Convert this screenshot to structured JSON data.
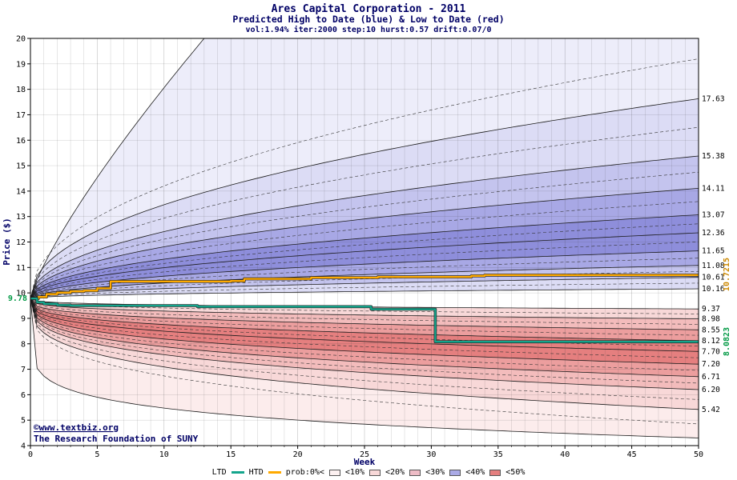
{
  "title": {
    "main": "Ares Capital Corporation - 2011",
    "subtitle": "Predicted High to Date (blue) &  Low to Date (red)",
    "params": "vol:1.94% iter:2000 step:10 hurst:0.57 drift:0.07/0"
  },
  "axes": {
    "x_label": "Week",
    "y_label": "Price ($)",
    "x_ticks": [
      0,
      5,
      10,
      15,
      20,
      25,
      30,
      35,
      40,
      45,
      50
    ],
    "y_ticks": [
      4,
      5,
      6,
      7,
      8,
      9,
      10,
      11,
      12,
      13,
      14,
      15,
      16,
      17,
      18,
      19,
      20
    ]
  },
  "annotations": {
    "start_label": "9.78",
    "htd_final_label": "10.7215",
    "ltd_final_label": "8.0823"
  },
  "copyright": {
    "line1": "©www.textbiz.org",
    "line2": "The Research Foundation of SUNY"
  },
  "colors": {
    "navy": "#000066",
    "green": "#009944",
    "orange_label": "#cc8800"
  },
  "legend": {
    "ltd": "LTD",
    "htd": "HTD",
    "prob": "prob:0%<",
    "items": [
      {
        "label": "<10%",
        "color": "#fdf1f1"
      },
      {
        "label": "<20%",
        "color": "#f8d8d8"
      },
      {
        "label": "<30%",
        "color": "#eebcc6"
      },
      {
        "label": "<40%",
        "color": "#aaaae6"
      },
      {
        "label": "<50%",
        "color": "#e57f7f"
      }
    ]
  },
  "chart_data": {
    "type": "area",
    "subtype": "probability-fan",
    "title": "Ares Capital Corporation - 2011",
    "xlabel": "Week",
    "ylabel": "Price ($)",
    "x_range": [
      0,
      50
    ],
    "y_range": [
      4,
      20
    ],
    "grid": true,
    "start": {
      "x": 0,
      "y": 9.78
    },
    "upper_band_endpoints": [
      10.16,
      10.61,
      11.08,
      11.65,
      12.36,
      13.07,
      14.11,
      15.38,
      17.63
    ],
    "upper_exp": 0.47,
    "upper_outer": {
      "end": 39.8,
      "exp": 0.8
    },
    "lower_band_endpoints": [
      9.37,
      8.98,
      8.55,
      8.12,
      7.7,
      7.2,
      6.71,
      6.2,
      5.42
    ],
    "lower_exp": 0.3,
    "lower_outer": {
      "end": 4.3,
      "exp": 0.15
    },
    "band_colors_blue": [
      "#ededfa",
      "#dcdcf5",
      "#c4c4ee",
      "#a8a8e5",
      "#8e8edb"
    ],
    "band_colors_red": [
      "#fcecec",
      "#f8d8d8",
      "#f3bcbc",
      "#ec9e9e",
      "#e57f7f"
    ],
    "right_labels": [
      17.63,
      15.38,
      14.11,
      13.07,
      12.36,
      11.65,
      11.08,
      10.61,
      10.16,
      9.37,
      8.98,
      8.55,
      8.12,
      7.7,
      7.2,
      6.71,
      6.2,
      5.42
    ],
    "htd_series": {
      "name": "HTD",
      "color": "#ffaa00",
      "final": 10.7215,
      "points": [
        [
          0,
          9.78
        ],
        [
          0.6,
          9.84
        ],
        [
          1.2,
          9.95
        ],
        [
          2,
          10.01
        ],
        [
          3,
          10.06
        ],
        [
          4,
          10.09
        ],
        [
          5,
          10.18
        ],
        [
          6,
          10.45
        ],
        [
          15,
          10.47
        ],
        [
          16,
          10.55
        ],
        [
          21,
          10.6
        ],
        [
          26,
          10.63
        ],
        [
          33,
          10.67
        ],
        [
          34,
          10.7
        ],
        [
          50,
          10.72
        ]
      ]
    },
    "ltd_series": {
      "name": "LTD",
      "color": "#14a58c",
      "final": 8.0823,
      "points": [
        [
          0,
          9.78
        ],
        [
          0.5,
          9.63
        ],
        [
          1,
          9.57
        ],
        [
          2,
          9.52
        ],
        [
          3,
          9.5
        ],
        [
          12,
          9.5
        ],
        [
          12.5,
          9.46
        ],
        [
          25,
          9.46
        ],
        [
          25.5,
          9.36
        ],
        [
          30,
          9.36
        ],
        [
          30.3,
          8.08
        ],
        [
          50,
          8.08
        ]
      ]
    }
  }
}
